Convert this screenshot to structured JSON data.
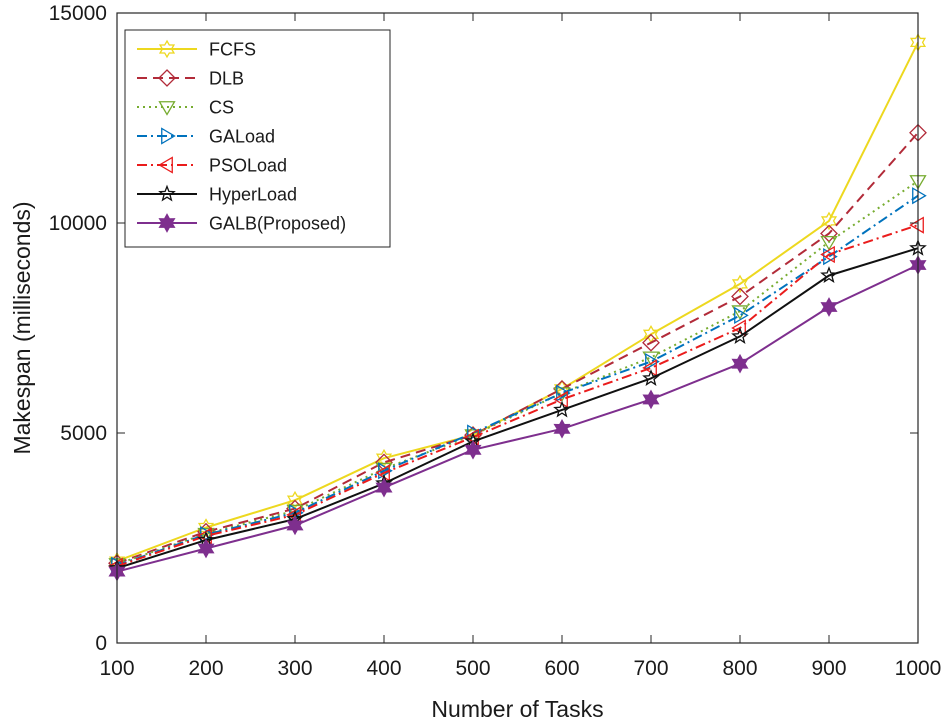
{
  "chart_data": {
    "type": "line",
    "title": "",
    "xlabel": "Number of Tasks",
    "ylabel": "Makespan (milliseconds)",
    "x": [
      100,
      200,
      300,
      400,
      500,
      600,
      700,
      800,
      900,
      1000
    ],
    "x_tick_labels": [
      "100",
      "200",
      "300",
      "400",
      "500",
      "600",
      "700",
      "800",
      "900",
      "1000"
    ],
    "xlim": [
      100,
      1000
    ],
    "ylim": [
      0,
      15000
    ],
    "y_ticks": [
      0,
      5000,
      10000,
      15000
    ],
    "y_tick_labels": [
      "0",
      "5000",
      "10000",
      "15000"
    ],
    "grid": false,
    "legend_position": "top-left",
    "series": [
      {
        "name": "FCFS",
        "color": "#edd81f",
        "dash": "solid",
        "marker": "hexagram-icon",
        "values": [
          1950,
          2750,
          3400,
          4400,
          4950,
          6050,
          7350,
          8550,
          10050,
          14300
        ]
      },
      {
        "name": "DLB",
        "color": "#b22b39",
        "dash": "dashed",
        "marker": "diamond-icon",
        "values": [
          1900,
          2650,
          3200,
          4300,
          4950,
          6050,
          7150,
          8250,
          9750,
          12150
        ]
      },
      {
        "name": "CS",
        "color": "#77ac30",
        "dash": "dotted",
        "marker": "triangle-down-icon",
        "values": [
          1880,
          2600,
          3150,
          4150,
          4950,
          5950,
          6800,
          7900,
          9550,
          11000
        ]
      },
      {
        "name": "GALoad",
        "color": "#0072bd",
        "dash": "dashdot",
        "marker": "triangle-right-icon",
        "values": [
          1850,
          2580,
          3100,
          4100,
          5000,
          5950,
          6700,
          7800,
          9200,
          10650
        ]
      },
      {
        "name": "PSOLoad",
        "color": "#ea1c1c",
        "dash": "dashdot",
        "marker": "triangle-left-icon",
        "values": [
          1830,
          2550,
          3050,
          4050,
          4900,
          5800,
          6550,
          7500,
          9250,
          9950
        ]
      },
      {
        "name": "HyperLoad",
        "color": "#111111",
        "dash": "solid",
        "marker": "pentagram-icon",
        "values": [
          1780,
          2450,
          2950,
          3800,
          4800,
          5550,
          6300,
          7300,
          8750,
          9400
        ]
      },
      {
        "name": "GALB(Proposed)",
        "color": "#7e2f8e",
        "dash": "solid",
        "marker": "filled-hexagram-icon",
        "values": [
          1700,
          2250,
          2800,
          3700,
          4600,
          5100,
          5800,
          6650,
          8000,
          9000
        ]
      }
    ]
  }
}
